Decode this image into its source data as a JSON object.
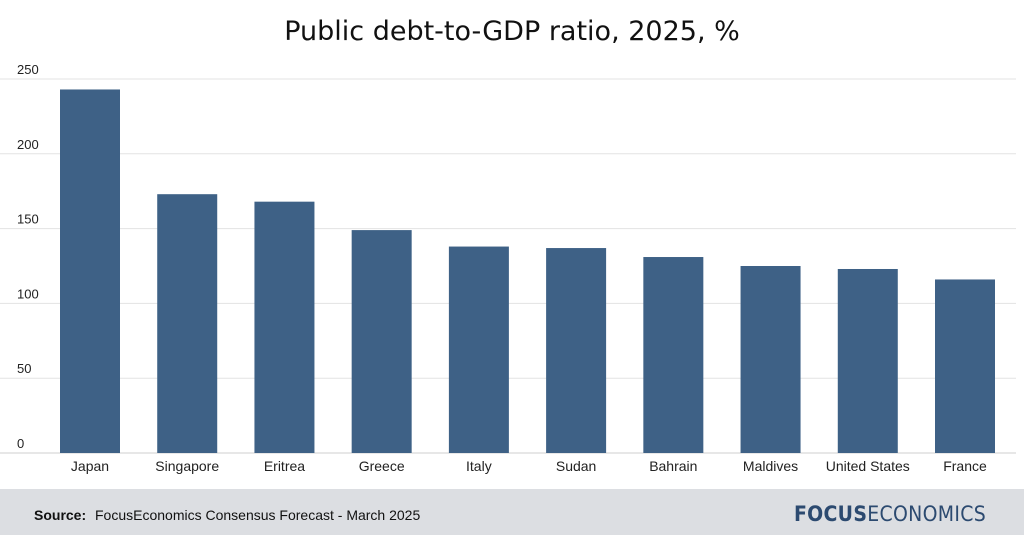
{
  "chart_data": {
    "type": "bar",
    "title": "Public debt-to-GDP ratio, 2025, %",
    "categories": [
      "Japan",
      "Singapore",
      "Eritrea",
      "Greece",
      "Italy",
      "Sudan",
      "Bahrain",
      "Maldives",
      "United States",
      "France"
    ],
    "values": [
      243,
      173,
      168,
      149,
      138,
      137,
      131,
      125,
      123,
      116
    ],
    "ylim": [
      0,
      250
    ],
    "yticks": [
      0,
      50,
      100,
      150,
      200,
      250
    ],
    "grid": true,
    "bar_color": "#3e6186"
  },
  "footer": {
    "source_label": "Source:",
    "source_text": "FocusEconomics Consensus Forecast - March 2025",
    "logo_bold": "FOCUS",
    "logo_regular": "ECONOMICS"
  },
  "colors": {
    "bar": "#3e6186",
    "grid": "#e3e3e3",
    "footer_bg": "#dcdee2",
    "logo": "#2c4a70"
  }
}
